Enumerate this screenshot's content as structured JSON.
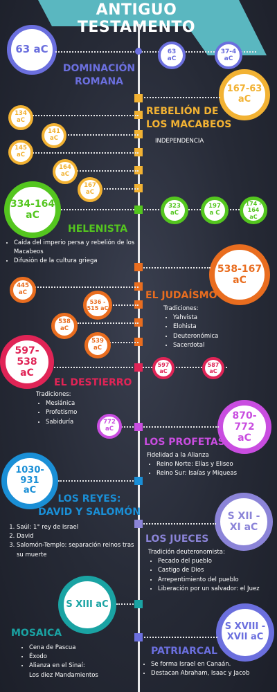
{
  "title": "ANTIGUO TESTAMENTO",
  "colors": {
    "romana": "#6b6fde",
    "macabeos": "#f2b233",
    "helenista": "#54c61f",
    "judaismo": "#e96d1f",
    "destierro": "#e02456",
    "profetas": "#c94de0",
    "reyes": "#1a8fd6",
    "jueces": "#8b84d8",
    "mosaica": "#1aa3a3",
    "patriarcal": "#6b6fde",
    "teal_banner": "#5ab7c0"
  },
  "romana": {
    "main": "63 aC",
    "title_l1": "DOMINACIÓN",
    "title_l2": "ROMANA",
    "dates": [
      {
        "l1": "63",
        "l2": "aC"
      },
      {
        "l1": "37-4",
        "l2": "aC"
      }
    ]
  },
  "macabeos": {
    "main_l1": "167-63",
    "main_l2": "aC",
    "title_l1": "REBELIÓN DE",
    "title_l2": "LOS MACABEOS",
    "subtitle": "INDEPENDENCIA",
    "dates": [
      {
        "l1": "134",
        "l2": "aC"
      },
      {
        "l1": "141",
        "l2": "aC"
      },
      {
        "l1": "145",
        "l2": "aC"
      },
      {
        "l1": "164",
        "l2": "aC"
      },
      {
        "l1": "167",
        "l2": "aC"
      }
    ]
  },
  "helenista": {
    "main_l1": "334-164",
    "main_l2": "aC",
    "title": "HELENISTA",
    "items": [
      "Caída del imperio persa y rebelión de los Macabeos",
      "Difusión de la cultura griega"
    ],
    "dates": [
      {
        "l1": "323",
        "l2": "aC"
      },
      {
        "l1": "197",
        "l2": "a C"
      },
      {
        "l1": "174 -",
        "l2": "164 aC"
      }
    ]
  },
  "judaismo": {
    "main_l1": "538-167",
    "main_l2": "aC",
    "title": "EL JUDAÍSMO",
    "label": "Tradiciones:",
    "items": [
      "Yahvista",
      "Elohista",
      "Deuteronómica",
      "Sacerdotal"
    ],
    "dates": [
      {
        "l1": "445",
        "l2": "aC"
      },
      {
        "l1": "536 -",
        "l2": "515 aC"
      },
      {
        "l1": "538",
        "l2": "aC"
      },
      {
        "l1": "539",
        "l2": "aC"
      }
    ]
  },
  "destierro": {
    "main_l1": "597-538",
    "main_l2": "aC",
    "title": "EL DESTIERRO",
    "label": "Tradiciones:",
    "items": [
      "Mesiánica",
      "Profetismo",
      "Sabiduría"
    ],
    "dates": [
      "597 aC",
      "587 aC"
    ]
  },
  "profetas": {
    "main_l1": "870-772",
    "main_l2": "aC",
    "title": "LOS PROFETAS",
    "label": "Fidelidad a la Alianza",
    "items": [
      "Reino Norte: Elías y Eliseo",
      "Reino Sur: Isaías y Miqueas"
    ],
    "date": {
      "l1": "772",
      "l2": "aC"
    }
  },
  "reyes": {
    "main_l1": "1030-931",
    "main_l2": "aC",
    "title_l1": "LOS REYES:",
    "title_l2": "DAVID Y SALOMÓN",
    "items": [
      "Saúl: 1° rey de Israel",
      "David",
      "Salomón-Templo: separación reinos tras su muerte"
    ]
  },
  "jueces": {
    "main_l1": "S XII -",
    "main_l2": "XI aC",
    "title": "LOS JUECES",
    "label": "Tradición deuteronomista:",
    "items": [
      "Pecado del pueblo",
      "Castigo de Dios",
      "Arrepentimiento del pueblo",
      "Liberación por un salvador: el Juez"
    ]
  },
  "mosaica": {
    "main": "S XIII aC",
    "title": "MOSAICA",
    "items": [
      "Cena de Pascua",
      "Éxodo",
      "Alianza en el Sinaí:",
      "Los diez Mandamientos"
    ]
  },
  "patriarcal": {
    "main_l1": "S XVIII -",
    "main_l2": "XVII aC",
    "title": "PATRIARCAL",
    "items": [
      "Se forma Israel en Canaán.",
      "Destacan Abraham, Isaac y Jacob"
    ]
  }
}
